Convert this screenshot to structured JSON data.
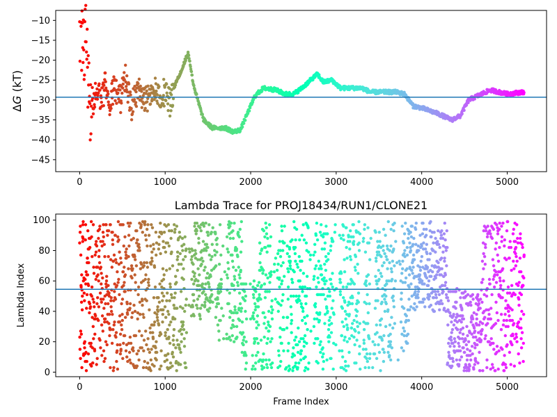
{
  "chart_data": [
    {
      "type": "scatter",
      "title": "",
      "xlabel": "",
      "ylabel_prefix": "Δ",
      "ylabel_var": "G",
      "ylabel_suffix": " (kT)",
      "xlim": [
        -280,
        5460
      ],
      "ylim": [
        -48,
        -7.5
      ],
      "xticks": [
        0,
        1000,
        2000,
        3000,
        4000,
        5000
      ],
      "yticks": [
        -45,
        -40,
        -35,
        -30,
        -25,
        -20,
        -15,
        -10
      ],
      "hline": -29.3,
      "hline_color": "#1f77b4",
      "colormap": "rainbow",
      "frames": 5200,
      "trace_knots": [
        [
          0,
          -12
        ],
        [
          20,
          -16
        ],
        [
          40,
          -19
        ],
        [
          60,
          -15
        ],
        [
          80,
          -13
        ],
        [
          110,
          -28
        ],
        [
          150,
          -31
        ],
        [
          200,
          -27
        ],
        [
          260,
          -30
        ],
        [
          300,
          -26
        ],
        [
          340,
          -33
        ],
        [
          380,
          -28
        ],
        [
          420,
          -27
        ],
        [
          480,
          -30
        ],
        [
          540,
          -24
        ],
        [
          600,
          -32
        ],
        [
          640,
          -30
        ],
        [
          700,
          -28
        ],
        [
          780,
          -30
        ],
        [
          850,
          -27
        ],
        [
          930,
          -29
        ],
        [
          1000,
          -28
        ],
        [
          1060,
          -31
        ],
        [
          1100,
          -27
        ],
        [
          1200,
          -22
        ],
        [
          1270,
          -18
        ],
        [
          1330,
          -26
        ],
        [
          1380,
          -30
        ],
        [
          1450,
          -35
        ],
        [
          1550,
          -37
        ],
        [
          1700,
          -37
        ],
        [
          1800,
          -38
        ],
        [
          1880,
          -37.5
        ],
        [
          1950,
          -34
        ],
        [
          2050,
          -29
        ],
        [
          2150,
          -27
        ],
        [
          2300,
          -27.5
        ],
        [
          2400,
          -28.5
        ],
        [
          2500,
          -28.5
        ],
        [
          2600,
          -27
        ],
        [
          2700,
          -25
        ],
        [
          2780,
          -23.5
        ],
        [
          2850,
          -25.5
        ],
        [
          2950,
          -25
        ],
        [
          3050,
          -27
        ],
        [
          3300,
          -27
        ],
        [
          3400,
          -28
        ],
        [
          3700,
          -28
        ],
        [
          3800,
          -28.5
        ],
        [
          3900,
          -31.5
        ],
        [
          4000,
          -32
        ],
        [
          4200,
          -33.5
        ],
        [
          4350,
          -35
        ],
        [
          4450,
          -34
        ],
        [
          4550,
          -30
        ],
        [
          4700,
          -28.5
        ],
        [
          4800,
          -27.5
        ],
        [
          5000,
          -28.5
        ],
        [
          5190,
          -28
        ]
      ]
    },
    {
      "type": "scatter",
      "title": "Lambda Trace for PROJ18434/RUN1/CLONE21",
      "xlabel": "Frame Index",
      "ylabel": "Lambda Index",
      "xlim": [
        -280,
        5460
      ],
      "ylim": [
        -3,
        104
      ],
      "xticks": [
        0,
        1000,
        2000,
        3000,
        4000,
        5000
      ],
      "yticks": [
        0,
        20,
        40,
        60,
        80,
        100
      ],
      "hline": 54.5,
      "hline_color": "#1f77b4",
      "colormap": "rainbow",
      "frames": 5200,
      "lambda_max": 99,
      "regions": [
        {
          "x0": 0,
          "x1": 1260,
          "y0": 1,
          "y1": 99
        },
        {
          "x0": 1260,
          "x1": 1600,
          "y0": 35,
          "y1": 99
        },
        {
          "x0": 1600,
          "x1": 1900,
          "y0": 20,
          "y1": 99
        },
        {
          "x0": 1900,
          "x1": 2100,
          "y0": 1,
          "y1": 60
        },
        {
          "x0": 2100,
          "x1": 3850,
          "y0": 1,
          "y1": 99
        },
        {
          "x0": 3850,
          "x1": 4300,
          "y0": 40,
          "y1": 99
        },
        {
          "x0": 4300,
          "x1": 4700,
          "y0": 1,
          "y1": 55
        },
        {
          "x0": 4700,
          "x1": 5200,
          "y0": 1,
          "y1": 99
        }
      ]
    }
  ]
}
